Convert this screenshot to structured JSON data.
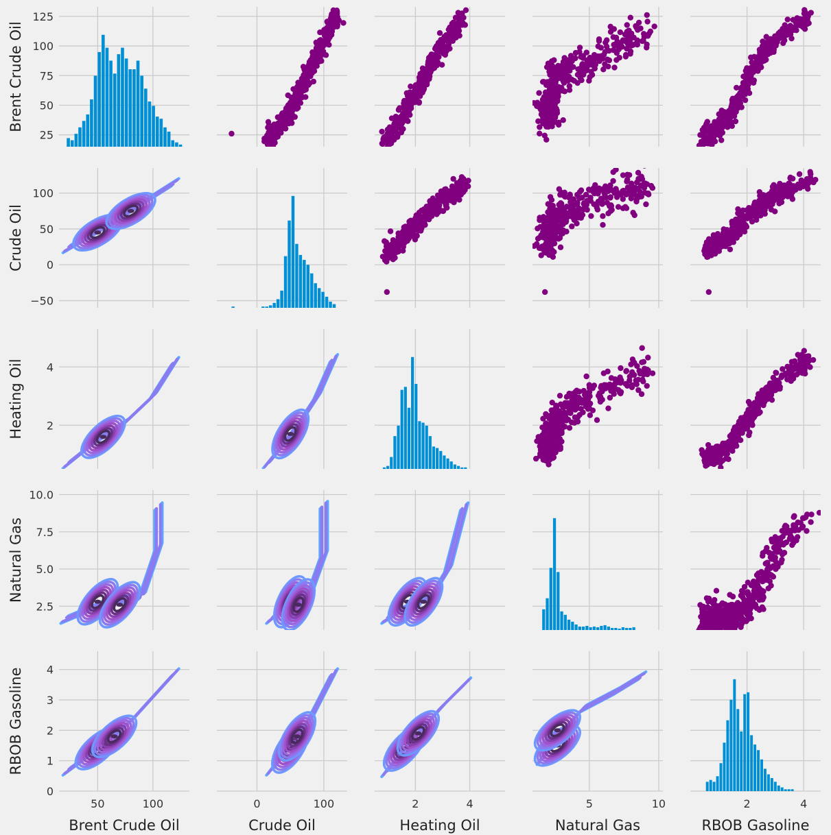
{
  "figure": {
    "background": "#f0f0f0",
    "grid_color": "#cbcbcb",
    "hist_color": "#008fd5",
    "scatter_color": "#800080",
    "kde_palette": [
      "#5aaeff",
      "#6f98ff",
      "#8a7cf0",
      "#9b66e0",
      "#a050c8",
      "#8a3fae",
      "#6a2f86",
      "#4a2a5c"
    ]
  },
  "chart_data": {
    "type": "scatter",
    "kind": "pairplot",
    "grid": true,
    "upper": "scatter",
    "diagonal": "histogram",
    "lower": "kde",
    "variables": [
      "Brent Crude Oil",
      "Crude Oil",
      "Heating Oil",
      "Natural Gas",
      "RBOB Gasoline"
    ],
    "xlabels": [
      "Brent Crude Oil",
      "Crude Oil",
      "Heating Oil",
      "Natural Gas",
      "RBOB Gasoline"
    ],
    "ylabels": [
      "Brent Crude Oil",
      "Crude Oil",
      "Heating Oil",
      "Natural Gas",
      "RBOB Gasoline"
    ],
    "axis_ranges": [
      [
        15,
        133
      ],
      [
        -60,
        135
      ],
      [
        0.5,
        5.3
      ],
      [
        0.9,
        10.3
      ],
      [
        0,
        4.6
      ]
    ],
    "x_ticks": [
      [
        "50",
        "100"
      ],
      [
        "0",
        "100"
      ],
      [
        "2",
        "4"
      ],
      [
        "5",
        "10"
      ],
      [
        "2",
        "4"
      ]
    ],
    "y_ticks": [
      [
        "25",
        "50",
        "75",
        "100",
        "125"
      ],
      [
        "−50",
        "0",
        "50",
        "100"
      ],
      [
        "2",
        "4"
      ],
      [
        "2.5",
        "5.0",
        "7.5",
        "10.0"
      ],
      [
        "0",
        "1",
        "2",
        "3",
        "4"
      ]
    ],
    "histograms": [
      {
        "variable": "Brent Crude Oil",
        "bin_start": 22,
        "bin_width": 3.5,
        "counts": [
          4,
          3,
          6,
          9,
          12,
          15,
          22,
          33,
          44,
          52,
          46,
          40,
          34,
          43,
          46,
          41,
          36,
          36,
          40,
          33,
          27,
          21,
          19,
          14,
          13,
          9,
          7,
          3,
          2,
          1
        ]
      },
      {
        "variable": "Crude Oil",
        "bin_start": -38,
        "bin_width": 5.6,
        "counts": [
          1,
          0,
          0,
          0,
          0,
          0,
          0,
          0,
          1,
          1,
          2,
          4,
          7,
          14,
          42,
          71,
          91,
          52,
          43,
          39,
          35,
          28,
          20,
          16,
          13,
          9,
          5,
          3
        ]
      },
      {
        "variable": "Heating Oil",
        "bin_start": 0.8,
        "bin_width": 0.13,
        "counts": [
          1,
          2,
          8,
          22,
          29,
          53,
          55,
          41,
          75,
          57,
          32,
          31,
          29,
          22,
          15,
          14,
          12,
          9,
          7,
          5,
          3,
          2,
          1,
          1
        ]
      },
      {
        "variable": "Natural Gas",
        "bin_start": 1.6,
        "bin_width": 0.26,
        "counts": [
          30,
          46,
          90,
          162,
          84,
          27,
          22,
          15,
          12,
          8,
          5,
          5,
          6,
          4,
          5,
          4,
          6,
          7,
          5,
          3,
          3,
          2,
          4,
          3,
          3,
          4
        ]
      },
      {
        "variable": "RBOB Gasoline",
        "bin_start": 0.55,
        "bin_width": 0.12,
        "counts": [
          5,
          6,
          5,
          8,
          15,
          26,
          38,
          49,
          60,
          44,
          32,
          52,
          53,
          30,
          25,
          22,
          17,
          12,
          9,
          7,
          5,
          3,
          2,
          1,
          1,
          1
        ]
      }
    ],
    "scatter_trend": [
      {
        "x": "Crude Oil",
        "y": "Brent Crude Oil",
        "path": [
          [
            15,
            20
          ],
          [
            40,
            36
          ],
          [
            60,
            57
          ],
          [
            80,
            80
          ],
          [
            100,
            104
          ],
          [
            120,
            125
          ]
        ],
        "outliers": [
          [
            -38,
            26
          ]
        ]
      },
      {
        "x": "Heating Oil",
        "y": "Brent Crude Oil",
        "path": [
          [
            0.95,
            20
          ],
          [
            1.5,
            40
          ],
          [
            2.0,
            60
          ],
          [
            2.5,
            80
          ],
          [
            3.0,
            100
          ],
          [
            3.8,
            125
          ]
        ],
        "outliers": []
      },
      {
        "x": "Natural Gas",
        "y": "Brent Crude Oil",
        "path": [
          [
            2.0,
            40
          ],
          [
            2.5,
            65
          ],
          [
            3.0,
            80
          ],
          [
            5.0,
            85
          ],
          [
            7.5,
            105
          ],
          [
            9.3,
            110
          ]
        ],
        "outliers": []
      },
      {
        "x": "RBOB Gasoline",
        "y": "Brent Crude Oil",
        "path": [
          [
            0.5,
            22
          ],
          [
            1.0,
            30
          ],
          [
            1.6,
            50
          ],
          [
            2.0,
            70
          ],
          [
            2.6,
            95
          ],
          [
            3.2,
            110
          ],
          [
            4.3,
            125
          ]
        ],
        "outliers": []
      },
      {
        "x": "Heating Oil",
        "y": "Crude Oil",
        "path": [
          [
            0.95,
            15
          ],
          [
            1.5,
            35
          ],
          [
            2.0,
            55
          ],
          [
            2.5,
            75
          ],
          [
            3.0,
            90
          ],
          [
            3.8,
            112
          ]
        ],
        "outliers": [
          [
            0.95,
            -38
          ]
        ]
      },
      {
        "x": "Natural Gas",
        "y": "Crude Oil",
        "path": [
          [
            2.0,
            40
          ],
          [
            2.5,
            65
          ],
          [
            3.0,
            75
          ],
          [
            5.0,
            85
          ],
          [
            7.5,
            100
          ],
          [
            9.3,
            110
          ]
        ],
        "outliers": [
          [
            1.8,
            -38
          ]
        ]
      },
      {
        "x": "RBOB Gasoline",
        "y": "Crude Oil",
        "path": [
          [
            0.55,
            20
          ],
          [
            1.0,
            30
          ],
          [
            1.6,
            50
          ],
          [
            2.0,
            65
          ],
          [
            2.6,
            85
          ],
          [
            3.2,
            100
          ],
          [
            4.3,
            120
          ]
        ],
        "outliers": [
          [
            0.65,
            -38
          ]
        ]
      },
      {
        "x": "Natural Gas",
        "y": "Heating Oil",
        "path": [
          [
            2.0,
            1.2
          ],
          [
            2.5,
            1.9
          ],
          [
            3.0,
            2.4
          ],
          [
            5.0,
            3.0
          ],
          [
            7.5,
            3.6
          ],
          [
            9.3,
            3.9
          ]
        ],
        "outliers": []
      },
      {
        "x": "RBOB Gasoline",
        "y": "Heating Oil",
        "path": [
          [
            0.55,
            0.9
          ],
          [
            1.0,
            1.0
          ],
          [
            1.6,
            1.6
          ],
          [
            2.0,
            2.2
          ],
          [
            2.6,
            3.0
          ],
          [
            3.2,
            3.6
          ],
          [
            4.3,
            4.3
          ]
        ],
        "outliers": []
      },
      {
        "x": "RBOB Gasoline",
        "y": "Natural Gas",
        "path": [
          [
            0.55,
            1.6
          ],
          [
            1.2,
            1.8
          ],
          [
            1.8,
            2.2
          ],
          [
            2.2,
            3.0
          ],
          [
            2.8,
            5.0
          ],
          [
            3.3,
            7.0
          ],
          [
            4.2,
            8.6
          ]
        ],
        "outliers": []
      }
    ],
    "kde_peaks": [
      {
        "x": "Brent Crude Oil",
        "y": "Crude Oil",
        "ridge": [
          [
            22,
            22
          ],
          [
            50,
            47
          ],
          [
            80,
            76
          ],
          [
            120,
            115
          ]
        ],
        "peaks": [
          [
            50,
            45
          ],
          [
            80,
            75
          ]
        ]
      },
      {
        "x": "Brent Crude Oil",
        "y": "Heating Oil",
        "ridge": [
          [
            22,
            0.65
          ],
          [
            50,
            1.5
          ],
          [
            75,
            2.1
          ],
          [
            100,
            3.0
          ],
          [
            120,
            4.2
          ]
        ],
        "peaks": [
          [
            55,
            1.6
          ]
        ]
      },
      {
        "x": "Crude Oil",
        "y": "Heating Oil",
        "ridge": [
          [
            15,
            0.65
          ],
          [
            45,
            1.5
          ],
          [
            70,
            2.3
          ],
          [
            90,
            3.0
          ],
          [
            115,
            4.3
          ]
        ],
        "peaks": [
          [
            50,
            1.7
          ]
        ]
      },
      {
        "x": "Brent Crude Oil",
        "y": "Natural Gas",
        "ridge": [
          [
            20,
            1.6
          ],
          [
            55,
            2.7
          ],
          [
            90,
            3.2
          ],
          [
            105,
            6.5
          ],
          [
            105,
            9.2
          ]
        ],
        "peaks": [
          [
            50,
            2.8
          ],
          [
            70,
            2.6
          ]
        ]
      },
      {
        "x": "Crude Oil",
        "y": "Natural Gas",
        "ridge": [
          [
            20,
            1.6
          ],
          [
            50,
            2.7
          ],
          [
            80,
            3.5
          ],
          [
            100,
            6.0
          ],
          [
            100,
            9.3
          ]
        ],
        "peaks": [
          [
            50,
            2.8
          ],
          [
            62,
            2.6
          ]
        ]
      },
      {
        "x": "Heating Oil",
        "y": "Natural Gas",
        "ridge": [
          [
            0.9,
            1.6
          ],
          [
            1.8,
            2.6
          ],
          [
            2.6,
            3.2
          ],
          [
            3.2,
            5.0
          ],
          [
            3.8,
            9.2
          ]
        ],
        "peaks": [
          [
            1.7,
            2.8
          ],
          [
            2.3,
            2.8
          ]
        ]
      },
      {
        "x": "Brent Crude Oil",
        "y": "RBOB Gasoline",
        "ridge": [
          [
            22,
            0.65
          ],
          [
            50,
            1.4
          ],
          [
            80,
            2.3
          ],
          [
            120,
            3.9
          ]
        ],
        "peaks": [
          [
            50,
            1.4
          ],
          [
            65,
            1.8
          ]
        ]
      },
      {
        "x": "Crude Oil",
        "y": "RBOB Gasoline",
        "ridge": [
          [
            20,
            0.65
          ],
          [
            50,
            1.5
          ],
          [
            80,
            2.4
          ],
          [
            115,
            3.9
          ]
        ],
        "peaks": [
          [
            50,
            1.4
          ],
          [
            60,
            1.8
          ]
        ]
      },
      {
        "x": "Heating Oil",
        "y": "RBOB Gasoline",
        "ridge": [
          [
            0.9,
            0.6
          ],
          [
            1.6,
            1.4
          ],
          [
            2.4,
            2.2
          ],
          [
            3.0,
            2.8
          ],
          [
            3.9,
            3.6
          ]
        ],
        "peaks": [
          [
            1.6,
            1.4
          ],
          [
            2.1,
            1.9
          ]
        ]
      },
      {
        "x": "Natural Gas",
        "y": "RBOB Gasoline",
        "ridge": [
          [
            1.5,
            1.0
          ],
          [
            2.7,
            1.8
          ],
          [
            4.5,
            2.7
          ],
          [
            7.0,
            3.3
          ],
          [
            8.8,
            3.8
          ]
        ],
        "peaks": [
          [
            2.7,
            1.5
          ],
          [
            2.7,
            2.0
          ]
        ]
      }
    ]
  }
}
